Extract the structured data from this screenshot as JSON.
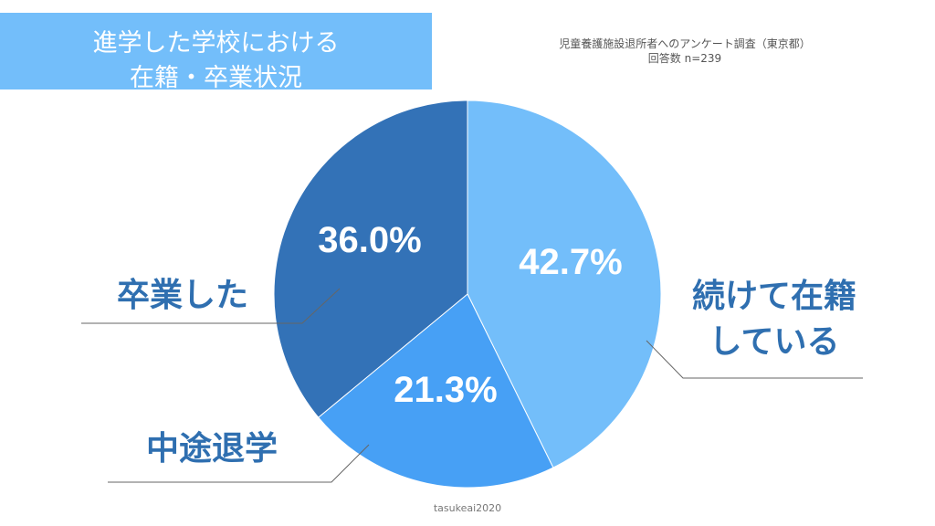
{
  "header": {
    "title_line1": "進学した学校における",
    "title_line2": "在籍・卒業状況",
    "source_line1": "児童養護施設退所者へのアンケート調査（東京都）",
    "source_line2": "回答数 n=239"
  },
  "footer": {
    "credit": "tasukeai2020"
  },
  "colors": {
    "title_bg": "#73befa",
    "slice_enrolled": "#73befa",
    "slice_dropout": "#47a0f5",
    "slice_graduated": "#3372b7",
    "category_text": "#2f6fb0"
  },
  "chart_data": {
    "type": "pie",
    "title": "進学した学校における在籍・卒業状況",
    "slices": [
      {
        "label_lines": [
          "続けて在籍",
          "している"
        ],
        "value": 42.7,
        "value_label": "42.7%",
        "color": "#73befa"
      },
      {
        "label_lines": [
          "中途退学"
        ],
        "value": 21.3,
        "value_label": "21.3%",
        "color": "#47a0f5"
      },
      {
        "label_lines": [
          "卒業した"
        ],
        "value": 36.0,
        "value_label": "36.0%",
        "color": "#3372b7"
      }
    ]
  }
}
